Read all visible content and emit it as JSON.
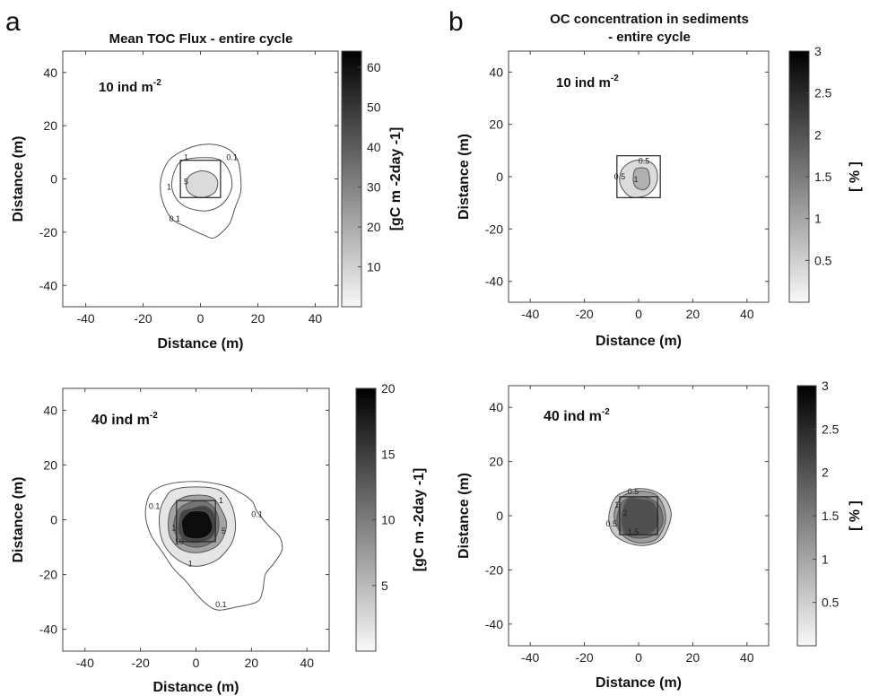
{
  "figure": {
    "panel_letters": [
      "a",
      "b"
    ],
    "column_titles": [
      [
        "Mean TOC Flux - entire cycle"
      ],
      [
        "OC concentration in sediments",
        "- entire cycle"
      ]
    ]
  },
  "chart_data": [
    {
      "type": "contour",
      "panel": "a",
      "title": "Mean TOC Flux - entire cycle",
      "annotation": {
        "main": "10 ind m",
        "sup": "-2"
      },
      "xlabel": "Distance (m)",
      "ylabel": "Distance (m)",
      "xlim": [
        -48,
        48
      ],
      "ylim": [
        -48,
        48
      ],
      "xticks": [
        -40,
        -20,
        0,
        20,
        40
      ],
      "yticks": [
        -40,
        -20,
        0,
        20,
        40
      ],
      "colorbar": {
        "label": "[gC m -2day -1]",
        "min": 0,
        "max": 64,
        "ticks": [
          10,
          20,
          30,
          40,
          50,
          60
        ]
      },
      "contour_labels": [
        {
          "text": "0.1",
          "x": 11,
          "y": 7
        },
        {
          "text": "0.1",
          "x": -9,
          "y": -16
        },
        {
          "text": "1",
          "x": -11,
          "y": -4
        },
        {
          "text": "5",
          "x": -5,
          "y": -2
        },
        {
          "text": "1",
          "x": -5,
          "y": 7
        }
      ],
      "contours": [
        {
          "level": 0.1,
          "fill": 0.0,
          "points": [
            [
              -3,
              12
            ],
            [
              4,
              13
            ],
            [
              10,
              11
            ],
            [
              13,
              7
            ],
            [
              14,
              1
            ],
            [
              14,
              -5
            ],
            [
              12,
              -11
            ],
            [
              10,
              -17
            ],
            [
              5,
              -22
            ],
            [
              1,
              -21
            ],
            [
              -5,
              -18
            ],
            [
              -10,
              -15
            ],
            [
              -13,
              -9
            ],
            [
              -14,
              -3
            ],
            [
              -13,
              3
            ],
            [
              -10,
              8
            ]
          ]
        },
        {
          "level": 1,
          "fill": 0.0,
          "points": [
            [
              -6,
              7
            ],
            [
              2,
              8
            ],
            [
              7,
              7
            ],
            [
              10,
              3
            ],
            [
              11,
              -2
            ],
            [
              10,
              -6
            ],
            [
              7,
              -10
            ],
            [
              2,
              -12
            ],
            [
              -4,
              -11
            ],
            [
              -8,
              -8
            ],
            [
              -10,
              -3
            ],
            [
              -9,
              3
            ]
          ]
        },
        {
          "level": 5,
          "fill": 0.12,
          "points": [
            [
              0,
              3
            ],
            [
              4,
              2
            ],
            [
              6,
              -1
            ],
            [
              5,
              -5
            ],
            [
              1,
              -7
            ],
            [
              -3,
              -6
            ],
            [
              -5,
              -3
            ],
            [
              -4,
              1
            ]
          ]
        }
      ],
      "square": [
        -7,
        7,
        7,
        -7
      ]
    },
    {
      "type": "contour",
      "panel": "b",
      "title": "OC concentration in sediments - entire cycle",
      "annotation": {
        "main": "10 ind m",
        "sup": "-2"
      },
      "xlabel": "Distance (m)",
      "ylabel": "Distance (m)",
      "xlim": [
        -48,
        48
      ],
      "ylim": [
        -48,
        48
      ],
      "xticks": [
        -40,
        -20,
        0,
        20,
        40
      ],
      "yticks": [
        -40,
        -20,
        0,
        20,
        40
      ],
      "colorbar": {
        "label": "[ % ]",
        "min": 0,
        "max": 3,
        "ticks": [
          0.5,
          1,
          1.5,
          2,
          2.5,
          3
        ]
      },
      "contour_labels": [
        {
          "text": "0.5",
          "x": 2,
          "y": 5
        },
        {
          "text": "0.5",
          "x": -7,
          "y": -1
        },
        {
          "text": "1",
          "x": -1,
          "y": -2
        }
      ],
      "contours": [
        {
          "level": 0.5,
          "fill": 0.12,
          "points": [
            [
              -6,
              3
            ],
            [
              -2,
              6
            ],
            [
              3,
              6
            ],
            [
              6,
              4
            ],
            [
              7,
              0
            ],
            [
              6,
              -4
            ],
            [
              3,
              -7
            ],
            [
              -2,
              -8
            ],
            [
              -5,
              -6
            ],
            [
              -7,
              -2
            ]
          ]
        },
        {
          "level": 1,
          "fill": 0.3,
          "points": [
            [
              -1,
              3
            ],
            [
              3,
              3
            ],
            [
              4,
              0
            ],
            [
              4,
              -3
            ],
            [
              2,
              -5
            ],
            [
              -1,
              -4
            ],
            [
              -2,
              -1
            ]
          ]
        }
      ],
      "square": [
        -8,
        8,
        8,
        -8
      ]
    },
    {
      "type": "contour",
      "panel": "a",
      "annotation": {
        "main": "40 ind m",
        "sup": "-2"
      },
      "xlabel": "Distance (m)",
      "ylabel": "Distance (m)",
      "xlim": [
        -48,
        48
      ],
      "ylim": [
        -48,
        48
      ],
      "xticks": [
        -40,
        -20,
        0,
        20,
        40
      ],
      "yticks": [
        -40,
        -20,
        0,
        20,
        40
      ],
      "colorbar": {
        "label": "[gC m -2day -1]",
        "min": 0,
        "max": 20,
        "ticks": [
          5,
          10,
          15,
          20
        ]
      },
      "contour_labels": [
        {
          "text": "0.1",
          "x": -15,
          "y": 4
        },
        {
          "text": "0.1",
          "x": 22,
          "y": 1
        },
        {
          "text": "0.1",
          "x": 9,
          "y": -32
        },
        {
          "text": "1",
          "x": 9,
          "y": 6
        },
        {
          "text": "1",
          "x": -2,
          "y": -17
        },
        {
          "text": "5",
          "x": 10,
          "y": -5
        },
        {
          "text": "10",
          "x": -6,
          "y": -9
        },
        {
          "text": "1",
          "x": -8,
          "y": -4
        }
      ],
      "contours": [
        {
          "level": 0.1,
          "fill": 0.0,
          "points": [
            [
              -16,
              10
            ],
            [
              -10,
              13
            ],
            [
              0,
              14
            ],
            [
              8,
              13
            ],
            [
              14,
              11
            ],
            [
              20,
              7
            ],
            [
              22,
              3
            ],
            [
              26,
              -2
            ],
            [
              30,
              -6
            ],
            [
              31,
              -11
            ],
            [
              28,
              -16
            ],
            [
              25,
              -20
            ],
            [
              24,
              -26
            ],
            [
              22,
              -30
            ],
            [
              14,
              -32
            ],
            [
              8,
              -33
            ],
            [
              4,
              -31
            ],
            [
              0,
              -27
            ],
            [
              -4,
              -22
            ],
            [
              -8,
              -18
            ],
            [
              -12,
              -12
            ],
            [
              -16,
              -6
            ],
            [
              -18,
              0
            ],
            [
              -18,
              5
            ]
          ]
        },
        {
          "level": 1,
          "fill": 0.08,
          "points": [
            [
              -8,
              11
            ],
            [
              0,
              12
            ],
            [
              8,
              11
            ],
            [
              12,
              7
            ],
            [
              14,
              1
            ],
            [
              14,
              -5
            ],
            [
              12,
              -10
            ],
            [
              7,
              -15
            ],
            [
              0,
              -17
            ],
            [
              -6,
              -15
            ],
            [
              -11,
              -10
            ],
            [
              -13,
              -4
            ],
            [
              -13,
              3
            ],
            [
              -11,
              8
            ]
          ]
        },
        {
          "level": 5,
          "fill": 0.35,
          "points": [
            [
              -5,
              8
            ],
            [
              1,
              9
            ],
            [
              6,
              8
            ],
            [
              9,
              4
            ],
            [
              11,
              -1
            ],
            [
              10,
              -6
            ],
            [
              7,
              -10
            ],
            [
              1,
              -12
            ],
            [
              -5,
              -11
            ],
            [
              -9,
              -7
            ],
            [
              -10,
              -2
            ],
            [
              -9,
              4
            ]
          ]
        },
        {
          "level": 10,
          "fill": 0.55,
          "points": [
            [
              -3,
              6
            ],
            [
              2,
              7
            ],
            [
              6,
              5
            ],
            [
              8,
              1
            ],
            [
              8,
              -4
            ],
            [
              6,
              -8
            ],
            [
              1,
              -10
            ],
            [
              -4,
              -9
            ],
            [
              -7,
              -6
            ],
            [
              -8,
              -1
            ],
            [
              -6,
              4
            ]
          ]
        },
        {
          "level": 15,
          "fill": 0.75,
          "points": [
            [
              -2,
              4
            ],
            [
              3,
              5
            ],
            [
              6,
              3
            ],
            [
              7,
              -1
            ],
            [
              6,
              -6
            ],
            [
              2,
              -8
            ],
            [
              -3,
              -8
            ],
            [
              -6,
              -5
            ],
            [
              -6,
              0
            ],
            [
              -5,
              3
            ]
          ]
        },
        {
          "level": 20,
          "fill": 0.98,
          "points": [
            [
              -2,
              3
            ],
            [
              3,
              3
            ],
            [
              5,
              1
            ],
            [
              6,
              -3
            ],
            [
              4,
              -6
            ],
            [
              0,
              -7
            ],
            [
              -4,
              -6
            ],
            [
              -5,
              -3
            ],
            [
              -5,
              0
            ]
          ]
        }
      ],
      "square": [
        -7,
        7,
        7,
        -8
      ]
    },
    {
      "type": "contour",
      "panel": "b",
      "annotation": {
        "main": "40 ind m",
        "sup": "-2"
      },
      "xlabel": "Distance (m)",
      "ylabel": "Distance (m)",
      "xlim": [
        -48,
        48
      ],
      "ylim": [
        -48,
        48
      ],
      "xticks": [
        -40,
        -20,
        0,
        20,
        40
      ],
      "yticks": [
        -40,
        -20,
        0,
        20,
        40
      ],
      "colorbar": {
        "label": "[ % ]",
        "min": 0,
        "max": 3,
        "ticks": [
          0.5,
          1,
          1.5,
          2,
          2.5,
          3
        ]
      },
      "contour_labels": [
        {
          "text": "0.5",
          "x": -2,
          "y": 8
        },
        {
          "text": "0.5",
          "x": -10,
          "y": -4
        },
        {
          "text": "1",
          "x": -8,
          "y": 3
        },
        {
          "text": "1.5",
          "x": -2,
          "y": -7
        },
        {
          "text": "2",
          "x": -5,
          "y": 0
        }
      ],
      "contours": [
        {
          "level": 0.5,
          "fill": 0.2,
          "points": [
            [
              -7,
              8
            ],
            [
              0,
              10
            ],
            [
              6,
              9
            ],
            [
              10,
              6
            ],
            [
              12,
              1
            ],
            [
              11,
              -4
            ],
            [
              8,
              -9
            ],
            [
              2,
              -11
            ],
            [
              -4,
              -10
            ],
            [
              -9,
              -7
            ],
            [
              -11,
              -2
            ],
            [
              -10,
              4
            ]
          ]
        },
        {
          "level": 1,
          "fill": 0.38,
          "points": [
            [
              -6,
              7
            ],
            [
              0,
              9
            ],
            [
              6,
              8
            ],
            [
              9,
              4
            ],
            [
              10,
              -1
            ],
            [
              9,
              -5
            ],
            [
              6,
              -9
            ],
            [
              0,
              -10
            ],
            [
              -5,
              -8
            ],
            [
              -8,
              -4
            ],
            [
              -9,
              1
            ]
          ]
        },
        {
          "level": 1.5,
          "fill": 0.55,
          "points": [
            [
              -5,
              6
            ],
            [
              0,
              7
            ],
            [
              5,
              6
            ],
            [
              8,
              3
            ],
            [
              9,
              -2
            ],
            [
              7,
              -6
            ],
            [
              3,
              -8
            ],
            [
              -2,
              -8
            ],
            [
              -6,
              -6
            ],
            [
              -8,
              -2
            ],
            [
              -7,
              3
            ]
          ]
        },
        {
          "level": 2,
          "fill": 0.7,
          "points": [
            [
              -4,
              6
            ],
            [
              1,
              6
            ],
            [
              5,
              5
            ],
            [
              7,
              1
            ],
            [
              7,
              -3
            ],
            [
              5,
              -6
            ],
            [
              1,
              -7
            ],
            [
              -4,
              -7
            ],
            [
              -6,
              -4
            ],
            [
              -6,
              1
            ]
          ]
        }
      ],
      "square": [
        -7,
        7,
        7,
        -7
      ]
    }
  ]
}
